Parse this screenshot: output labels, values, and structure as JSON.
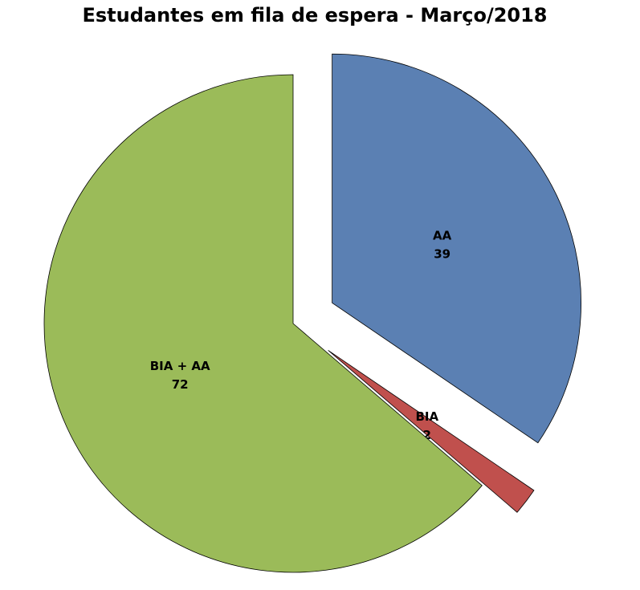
{
  "chart_data": {
    "type": "pie",
    "title": "Estudantes em fila de espera - Março/2018",
    "categories": [
      "AA",
      "BIA",
      "BIA + AA"
    ],
    "values": [
      39,
      2,
      72
    ],
    "colors": [
      "#5b80b3",
      "#c0504d",
      "#9bbb59"
    ]
  }
}
